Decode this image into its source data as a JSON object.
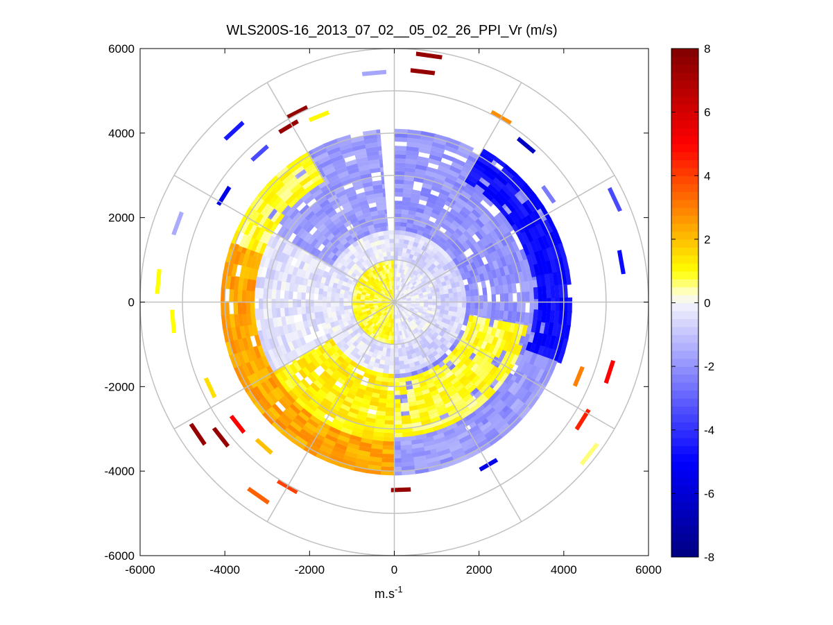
{
  "chart_data": {
    "type": "heatmap",
    "subtype": "polar-ppi-scan",
    "title": "WLS200S-16_2013_07_02__05_02_26_PPI_Vr (m/s)",
    "xlabel": "m.s",
    "xlabel_superscript": "-1",
    "ylabel": "",
    "xlim": [
      -6000,
      6000
    ],
    "ylim": [
      -6000,
      6000
    ],
    "xticks": [
      -6000,
      -4000,
      -2000,
      0,
      2000,
      4000,
      6000
    ],
    "yticks": [
      -6000,
      -4000,
      -2000,
      0,
      2000,
      4000,
      6000
    ],
    "polar_grid": {
      "radii": [
        1000,
        2000,
        3000,
        4000,
        5000,
        6000
      ],
      "spoke_angles_deg": [
        0,
        30,
        60,
        90,
        120,
        150,
        180,
        210,
        240,
        270,
        300,
        330
      ],
      "grid_color": "#c0c0c0"
    },
    "colorbar": {
      "min": -8,
      "max": 8,
      "ticks": [
        -8,
        -6,
        -4,
        -2,
        0,
        2,
        4,
        6,
        8
      ],
      "stops": [
        {
          "value": -8,
          "color": "#000080"
        },
        {
          "value": -5,
          "color": "#0000ff"
        },
        {
          "value": 0,
          "color": "#f4f4fc"
        },
        {
          "value": 0.3,
          "color": "#ffffd0"
        },
        {
          "value": 1,
          "color": "#ffff00"
        },
        {
          "value": 3,
          "color": "#ff8000"
        },
        {
          "value": 5,
          "color": "#ff0000"
        },
        {
          "value": 8,
          "color": "#800000"
        }
      ]
    },
    "sectors": [
      {
        "az_from": 0,
        "az_to": 360,
        "r_from": 0,
        "r_to": 1000,
        "vr_east": -0.3,
        "vr_west": 0.9
      },
      {
        "az_from": 0,
        "az_to": 360,
        "r_from": 1000,
        "r_to": 1700,
        "vr_east": -0.6,
        "vr_west": -0.3
      },
      {
        "az_from": 0,
        "az_to": 180,
        "r_from": 1700,
        "r_to": 4100,
        "vr": -2.0
      },
      {
        "az_from": 180,
        "az_to": 240,
        "r_from": 1700,
        "r_to": 3300,
        "vr": 1.2
      },
      {
        "az_from": 240,
        "az_to": 300,
        "r_from": 1700,
        "r_to": 3300,
        "vr": -0.4
      },
      {
        "az_from": 300,
        "az_to": 355,
        "r_from": 1700,
        "r_to": 4100,
        "vr": -1.8
      },
      {
        "az_from": 100,
        "az_to": 180,
        "r_from": 1800,
        "r_to": 3200,
        "vr": 0.9
      },
      {
        "az_from": 30,
        "az_to": 110,
        "r_from": 3300,
        "r_to": 4200,
        "vr": -4.8
      },
      {
        "az_from": 110,
        "az_to": 180,
        "r_from": 3300,
        "r_to": 4100,
        "vr": -1.8
      },
      {
        "az_from": 180,
        "az_to": 290,
        "r_from": 3300,
        "r_to": 4100,
        "vr": 2.4
      },
      {
        "az_from": 290,
        "az_to": 330,
        "r_from": 3300,
        "r_to": 4100,
        "vr": 0.9
      }
    ],
    "sparse_segments": [
      {
        "az": 8,
        "r": 5850,
        "vr": 7.5
      },
      {
        "az": 7,
        "r": 5450,
        "vr": 7.5
      },
      {
        "az": 355,
        "r": 5400,
        "vr": -1.6
      },
      {
        "az": 333,
        "r": 5000,
        "vr": 7.5
      },
      {
        "az": 329,
        "r": 4800,
        "vr": 7.5
      },
      {
        "az": 338,
        "r": 4700,
        "vr": 1.1
      },
      {
        "az": 30,
        "r": 5000,
        "vr": 2.8
      },
      {
        "az": 40,
        "r": 4800,
        "vr": -6.5
      },
      {
        "az": 55,
        "r": 4400,
        "vr": -2.5
      },
      {
        "az": 65,
        "r": 5700,
        "vr": -3.5
      },
      {
        "az": 80,
        "r": 5400,
        "vr": -4.8
      },
      {
        "az": 108,
        "r": 5300,
        "vr": 5.0
      },
      {
        "az": 112,
        "r": 4650,
        "vr": 3.0
      },
      {
        "az": 122,
        "r": 5200,
        "vr": 4.5
      },
      {
        "az": 128,
        "r": 5800,
        "vr": 0.6
      },
      {
        "az": 150,
        "r": 4400,
        "vr": -5.5
      },
      {
        "az": 178,
        "r": 4400,
        "vr": 7.5
      },
      {
        "az": 215,
        "r": 5550,
        "vr": 3.5
      },
      {
        "az": 210,
        "r": 5000,
        "vr": 4.0
      },
      {
        "az": 222,
        "r": 4550,
        "vr": 2.0
      },
      {
        "az": 232,
        "r": 5150,
        "vr": 7.5
      },
      {
        "az": 236,
        "r": 5550,
        "vr": 7.5
      },
      {
        "az": 232,
        "r": 4650,
        "vr": 5.0
      },
      {
        "az": 245,
        "r": 4750,
        "vr": 1.5
      },
      {
        "az": 265,
        "r": 5200,
        "vr": 1.0
      },
      {
        "az": 275,
        "r": 5550,
        "vr": 1.0
      },
      {
        "az": 290,
        "r": 5400,
        "vr": -1.5
      },
      {
        "az": 302,
        "r": 4700,
        "vr": -5.5
      },
      {
        "az": 317,
        "r": 5500,
        "vr": -4.5
      },
      {
        "az": 318,
        "r": 4700,
        "vr": -3.5
      }
    ]
  }
}
